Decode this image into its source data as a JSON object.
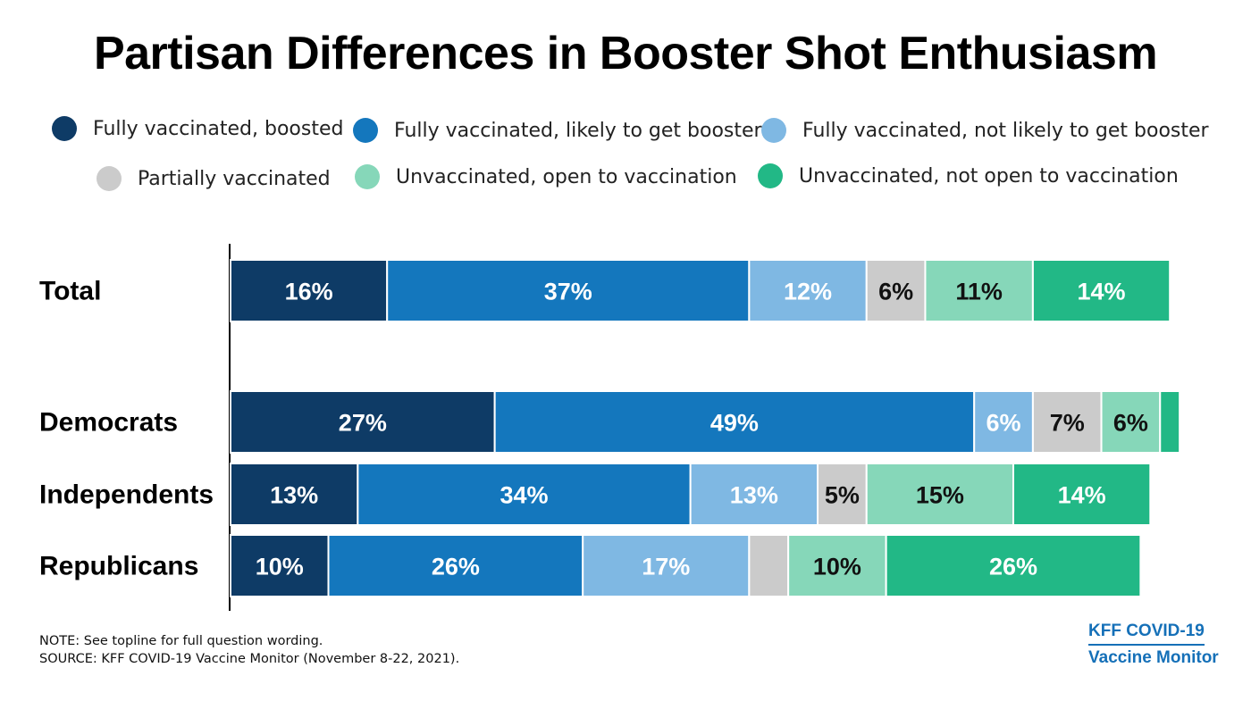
{
  "chart_data": {
    "type": "bar",
    "orientation": "horizontal",
    "stacked": true,
    "title": "Partisan Differences in Booster Shot Enthusiasm",
    "categories": [
      "Total",
      "Democrats",
      "Independents",
      "Republicans"
    ],
    "series": [
      {
        "name": "Fully vaccinated, boosted",
        "color": "#0e3b66",
        "values": [
          16,
          27,
          13,
          10
        ],
        "labels": [
          "16%",
          "27%",
          "13%",
          "10%"
        ],
        "label_color": "#ffffff"
      },
      {
        "name": "Fully vaccinated, likely to get booster",
        "color": "#1477bd",
        "values": [
          37,
          49,
          34,
          26
        ],
        "labels": [
          "37%",
          "49%",
          "34%",
          "26%"
        ],
        "label_color": "#ffffff"
      },
      {
        "name": "Fully vaccinated, not likely to get booster",
        "color": "#7fb8e3",
        "values": [
          12,
          6,
          13,
          17
        ],
        "labels": [
          "12%",
          "6%",
          "13%",
          "17%"
        ],
        "label_color": "#ffffff"
      },
      {
        "name": "Partially vaccinated",
        "color": "#cbcbcb",
        "values": [
          6,
          7,
          5,
          4
        ],
        "labels": [
          "6%",
          "7%",
          "5%",
          ""
        ],
        "label_color": "#111111"
      },
      {
        "name": "Unvaccinated, open to vaccination",
        "color": "#86d7b9",
        "values": [
          11,
          6,
          15,
          10
        ],
        "labels": [
          "11%",
          "6%",
          "15%",
          "10%"
        ],
        "label_color": "#111111"
      },
      {
        "name": "Unvaccinated, not open to vaccination",
        "color": "#22b886",
        "values": [
          14,
          2,
          14,
          26
        ],
        "labels": [
          "14%",
          "",
          "14%",
          "26%"
        ],
        "label_color": "#ffffff"
      }
    ],
    "xlim": [
      0,
      100
    ],
    "grid": false,
    "legend_position": "top"
  },
  "note": "NOTE: See topline for full question wording.",
  "source": "SOURCE: KFF COVID-19 Vaccine Monitor (November 8-22, 2021).",
  "brand": {
    "line1": "KFF COVID-19",
    "line2": "Vaccine Monitor"
  }
}
